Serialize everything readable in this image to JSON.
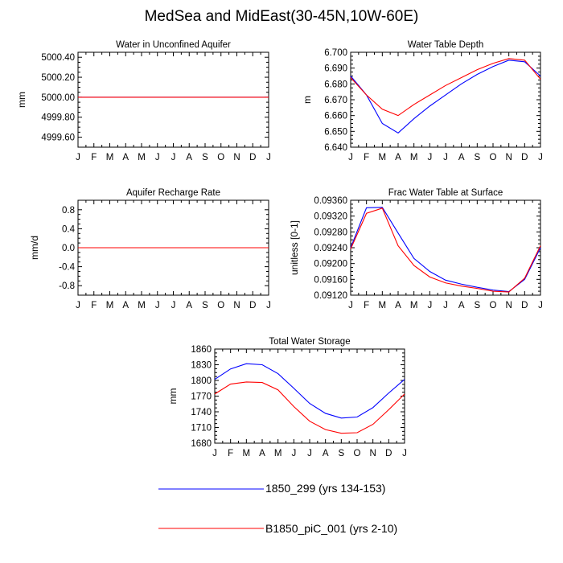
{
  "title": "MedSea and MidEast(30-45N,10W-60E)",
  "colors": {
    "series_a": "#0000ff",
    "series_b": "#ff0000",
    "axis": "#000000"
  },
  "legend": [
    {
      "label": "1850_299 (yrs 134-153)",
      "color": "#0000ff"
    },
    {
      "label": "B1850_piC_001 (yrs 2-10)",
      "color": "#ff0000"
    }
  ],
  "chart_data": [
    {
      "id": "water-unconfined",
      "type": "line",
      "title": "Water in Unconfined Aquifer",
      "ylabel": "mm",
      "xlabel": "",
      "categories": [
        "J",
        "F",
        "M",
        "A",
        "M",
        "J",
        "J",
        "A",
        "S",
        "O",
        "N",
        "D",
        "J"
      ],
      "ylim": [
        4999.5,
        5000.45
      ],
      "yticks": [
        4999.6,
        4999.8,
        5000.0,
        5000.2,
        5000.4
      ],
      "ytick_labels": [
        "4999.60",
        "4999.80",
        "5000.00",
        "5000.20",
        "5000.40"
      ],
      "series": [
        {
          "name": "1850_299 (yrs 134-153)",
          "color": "#0000ff",
          "values": [
            5000,
            5000,
            5000,
            5000,
            5000,
            5000,
            5000,
            5000,
            5000,
            5000,
            5000,
            5000,
            5000
          ]
        },
        {
          "name": "B1850_piC_001 (yrs 2-10)",
          "color": "#ff0000",
          "values": [
            5000,
            5000,
            5000,
            5000,
            5000,
            5000,
            5000,
            5000,
            5000,
            5000,
            5000,
            5000,
            5000
          ]
        }
      ]
    },
    {
      "id": "water-table-depth",
      "type": "line",
      "title": "Water Table Depth",
      "ylabel": "m",
      "xlabel": "",
      "categories": [
        "J",
        "F",
        "M",
        "A",
        "M",
        "J",
        "J",
        "A",
        "S",
        "O",
        "N",
        "D",
        "J"
      ],
      "ylim": [
        6.64,
        6.7
      ],
      "yticks": [
        6.64,
        6.65,
        6.66,
        6.67,
        6.68,
        6.69,
        6.7
      ],
      "ytick_labels": [
        "6.640",
        "6.650",
        "6.660",
        "6.670",
        "6.680",
        "6.690",
        "6.700"
      ],
      "series": [
        {
          "name": "1850_299 (yrs 134-153)",
          "color": "#0000ff",
          "values": [
            6.685,
            6.673,
            6.655,
            6.649,
            6.658,
            6.666,
            6.673,
            6.68,
            6.686,
            6.691,
            6.695,
            6.694,
            6.685
          ]
        },
        {
          "name": "B1850_piC_001 (yrs 2-10)",
          "color": "#ff0000",
          "values": [
            6.684,
            6.673,
            6.664,
            6.66,
            6.667,
            6.673,
            6.679,
            6.684,
            6.689,
            6.693,
            6.696,
            6.695,
            6.683
          ]
        }
      ]
    },
    {
      "id": "aquifer-recharge",
      "type": "line",
      "title": "Aquifer Recharge Rate",
      "ylabel": "mm/d",
      "xlabel": "",
      "categories": [
        "J",
        "F",
        "M",
        "A",
        "M",
        "J",
        "J",
        "A",
        "S",
        "O",
        "N",
        "D",
        "J"
      ],
      "ylim": [
        -1.0,
        1.0
      ],
      "yticks": [
        -0.8,
        -0.4,
        0.0,
        0.4,
        0.8
      ],
      "ytick_labels": [
        "-0.8",
        "-0.4",
        "0.0",
        "0.4",
        "0.8"
      ],
      "series": [
        {
          "name": "1850_299 (yrs 134-153)",
          "color": "#0000ff",
          "values": [
            0,
            0,
            0,
            0,
            0,
            0,
            0,
            0,
            0,
            0,
            0,
            0,
            0
          ]
        },
        {
          "name": "B1850_piC_001 (yrs 2-10)",
          "color": "#ff0000",
          "values": [
            0,
            0,
            0,
            0,
            0,
            0,
            0,
            0,
            0,
            0,
            0,
            0,
            0
          ]
        }
      ]
    },
    {
      "id": "frac-water-table",
      "type": "line",
      "title": "Frac Water Table at Surface",
      "ylabel": "unitless [0-1]",
      "xlabel": "",
      "categories": [
        "J",
        "F",
        "M",
        "A",
        "M",
        "J",
        "J",
        "A",
        "S",
        "O",
        "N",
        "D",
        "J"
      ],
      "ylim": [
        0.0912,
        0.0936
      ],
      "yticks": [
        0.0912,
        0.0916,
        0.092,
        0.0924,
        0.0928,
        0.0932,
        0.0936
      ],
      "ytick_labels": [
        "0.09120",
        "0.09160",
        "0.09200",
        "0.09240",
        "0.09280",
        "0.09320",
        "0.09360"
      ],
      "series": [
        {
          "name": "1850_299 (yrs 134-153)",
          "color": "#0000ff",
          "values": [
            0.0924,
            0.09341,
            0.09342,
            0.09277,
            0.09213,
            0.0918,
            0.09158,
            0.09148,
            0.0914,
            0.09133,
            0.09129,
            0.0916,
            0.0924
          ]
        },
        {
          "name": "B1850_piC_001 (yrs 2-10)",
          "color": "#ff0000",
          "values": [
            0.09237,
            0.09327,
            0.0934,
            0.09245,
            0.09195,
            0.09166,
            0.09151,
            0.09143,
            0.09137,
            0.0913,
            0.09128,
            0.09163,
            0.09245
          ]
        }
      ]
    },
    {
      "id": "total-water-storage",
      "type": "line",
      "title": "Total Water Storage",
      "ylabel": "mm",
      "xlabel": "",
      "categories": [
        "J",
        "F",
        "M",
        "A",
        "M",
        "J",
        "J",
        "A",
        "S",
        "O",
        "N",
        "D",
        "J"
      ],
      "ylim": [
        1680,
        1860
      ],
      "yticks": [
        1680,
        1710,
        1740,
        1770,
        1800,
        1830,
        1860
      ],
      "ytick_labels": [
        "1680",
        "1710",
        "1740",
        "1770",
        "1800",
        "1830",
        "1860"
      ],
      "series": [
        {
          "name": "1850_299 (yrs 134-153)",
          "color": "#0000ff",
          "values": [
            1802,
            1822,
            1832,
            1830,
            1813,
            1785,
            1756,
            1737,
            1728,
            1730,
            1748,
            1776,
            1802
          ]
        },
        {
          "name": "B1850_piC_001 (yrs 2-10)",
          "color": "#ff0000",
          "values": [
            1774,
            1793,
            1797,
            1796,
            1782,
            1750,
            1722,
            1706,
            1699,
            1700,
            1716,
            1744,
            1774
          ]
        }
      ]
    }
  ]
}
